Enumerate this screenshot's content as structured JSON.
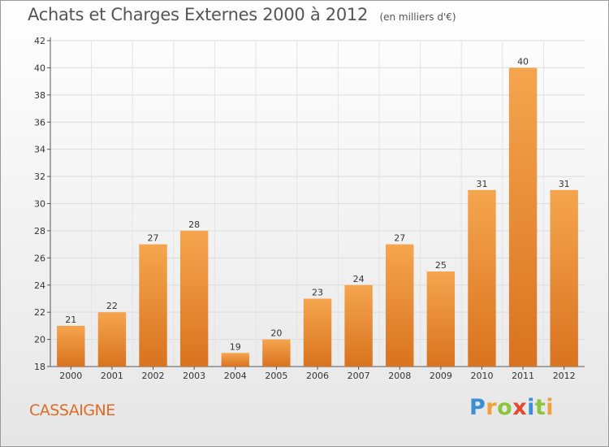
{
  "chart_data": {
    "type": "bar",
    "title": "Achats et Charges Externes 2000 à 2012",
    "subtitle": "(en milliers d'€)",
    "categories": [
      "2000",
      "2001",
      "2002",
      "2003",
      "2004",
      "2005",
      "2006",
      "2007",
      "2008",
      "2009",
      "2010",
      "2011",
      "2012"
    ],
    "values": [
      21,
      22,
      27,
      28,
      19,
      20,
      23,
      24,
      27,
      25,
      31,
      40,
      31
    ],
    "xlabel": "",
    "ylabel": "",
    "ylim": [
      18,
      42
    ],
    "yticks": [
      18,
      20,
      22,
      24,
      26,
      28,
      30,
      32,
      34,
      36,
      38,
      40,
      42
    ],
    "grid": true,
    "bar_color_light": "#f5a54e",
    "bar_color_dark": "#d9731f"
  },
  "commune": "CASSAIGNE",
  "logo": {
    "text": "Proxiti",
    "colors": {
      "blue": "#3a8fd6",
      "orange": "#f2a13a",
      "green": "#8bc43f",
      "red": "#e8462c"
    }
  }
}
